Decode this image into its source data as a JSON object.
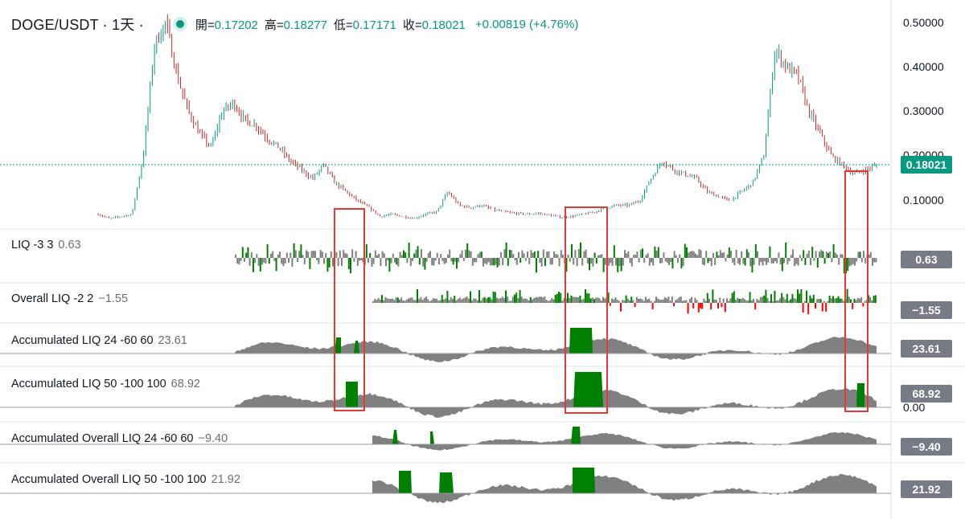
{
  "header": {
    "symbol": "DOGE/USDT · 1天 ·",
    "ohlc": [
      {
        "label": "開=",
        "value": "0.17202"
      },
      {
        "label": "高=",
        "value": "0.18277"
      },
      {
        "label": "低=",
        "value": "0.17171"
      },
      {
        "label": "收=",
        "value": "0.18021"
      }
    ],
    "change": "+0.00819 (+4.76%)"
  },
  "price_axis": {
    "ticks": [
      "0.50000",
      "0.40000",
      "0.30000",
      "0.20000",
      "0.10000"
    ],
    "current_price": "0.18021"
  },
  "panes": [
    {
      "name": "LIQ",
      "params": "-3 3",
      "value": "0.63"
    },
    {
      "name": "Overall LIQ",
      "params": "-2 2",
      "value": "−1.55"
    },
    {
      "name": "Accumulated LIQ",
      "params": "24 -60 60",
      "value": "23.61"
    },
    {
      "name": "Accumulated LIQ",
      "params": "50 -100 100",
      "value": "68.92",
      "extra_tick": "0.00"
    },
    {
      "name": "Accumulated Overall LIQ",
      "params": "24 -60 60",
      "value": "−9.40"
    },
    {
      "name": "Accumulated Overall LIQ",
      "params": "50 -100 100",
      "value": "21.92"
    }
  ],
  "colors": {
    "up": "#089981",
    "candle_down": "#c62828",
    "indicator_green": "#008000",
    "indicator_gray": "#808080",
    "indicator_red": "#ff0000",
    "highlight_box": "#e53935"
  },
  "chart_data": {
    "type": "line",
    "title": "DOGE/USDT · 1天",
    "series": [
      {
        "name": "DOGE/USDT",
        "values": [
          0.07,
          0.06,
          0.065,
          0.07,
          0.2,
          0.45,
          0.5,
          0.38,
          0.3,
          0.25,
          0.22,
          0.3,
          0.32,
          0.28,
          0.27,
          0.24,
          0.22,
          0.19,
          0.17,
          0.15,
          0.18,
          0.14,
          0.12,
          0.1,
          0.085,
          0.065,
          0.07,
          0.065,
          0.06,
          0.07,
          0.075,
          0.12,
          0.09,
          0.085,
          0.09,
          0.08,
          0.075,
          0.072,
          0.07,
          0.072,
          0.068,
          0.063,
          0.065,
          0.07,
          0.075,
          0.085,
          0.09,
          0.09,
          0.1,
          0.15,
          0.19,
          0.17,
          0.16,
          0.15,
          0.12,
          0.11,
          0.1,
          0.12,
          0.14,
          0.2,
          0.44,
          0.4,
          0.38,
          0.3,
          0.25,
          0.2,
          0.18,
          0.16,
          0.17,
          0.18
        ]
      }
    ],
    "ylim": [
      0.05,
      0.5
    ],
    "grid": true
  }
}
